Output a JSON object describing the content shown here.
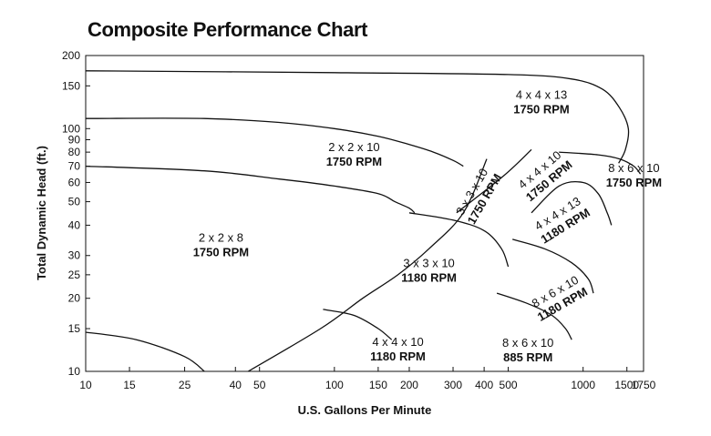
{
  "chart_data": {
    "type": "line",
    "title": "Composite Performance Chart",
    "xlabel": "U.S. Gallons Per Minute",
    "ylabel": "Total Dynamic Head (ft.)",
    "x_scale": "log",
    "y_scale": "log",
    "xlim": [
      10,
      1750
    ],
    "ylim": [
      10,
      200
    ],
    "grid": false,
    "x_ticks": [
      "10",
      "15",
      "25",
      "40",
      "50",
      "100",
      "150",
      "200",
      "300",
      "400",
      "500",
      "1000",
      "1500",
      "1750"
    ],
    "y_ticks": [
      "10",
      "15",
      "20",
      "25",
      "30",
      "40",
      "50",
      "60",
      "70",
      "80",
      "90",
      "100",
      "150",
      "200"
    ],
    "regions": [
      {
        "label": "2 x 2 x 8",
        "rpm": "1750 RPM",
        "boundary": [
          [
            10,
            70
          ],
          [
            30,
            67
          ],
          [
            60,
            62
          ],
          [
            100,
            58
          ],
          [
            150,
            54
          ],
          [
            175,
            50
          ],
          [
            200,
            47
          ],
          [
            210,
            45
          ]
        ],
        "label_at": [
          35,
          33
        ],
        "rotate": 0
      },
      {
        "label": "2 x 2 x 10",
        "rpm": "1750 RPM",
        "boundary": [
          [
            10,
            110
          ],
          [
            30,
            110
          ],
          [
            60,
            106
          ],
          [
            100,
            100
          ],
          [
            150,
            93
          ],
          [
            200,
            86
          ],
          [
            250,
            80
          ],
          [
            300,
            74
          ],
          [
            330,
            70
          ]
        ],
        "label_at": [
          120,
          78
        ],
        "rotate": 0
      },
      {
        "label": "4 x 4 x 13",
        "rpm": "1750 RPM",
        "boundary": [
          [
            10,
            173
          ],
          [
            100,
            170
          ],
          [
            500,
            167
          ],
          [
            900,
            160
          ],
          [
            1200,
            145
          ],
          [
            1400,
            122
          ],
          [
            1520,
            100
          ],
          [
            1480,
            82
          ],
          [
            1390,
            72
          ]
        ],
        "label_at": [
          680,
          128
        ],
        "rotate": 0
      },
      {
        "label": "3 x 3 x 10",
        "rpm": "1750 RPM",
        "boundary": [
          [
            45,
            10
          ],
          [
            88,
            15
          ],
          [
            130,
            20
          ],
          [
            180,
            25
          ],
          [
            240,
            32
          ],
          [
            330,
            45
          ],
          [
            410,
            75
          ]
        ],
        "label_at": [
          380,
          53
        ],
        "rotate": -60
      },
      {
        "label": "4 x 4 x 10",
        "rpm": "1750 RPM",
        "boundary": [
          [
            310,
            45
          ],
          [
            480,
            64
          ],
          [
            620,
            82
          ]
        ],
        "label_at": [
          700,
          64
        ],
        "rotate": -40
      },
      {
        "label": "4 x 4 x 13",
        "rpm": "1180 RPM",
        "boundary": [
          [
            620,
            45
          ],
          [
            800,
            58
          ],
          [
            1000,
            60
          ],
          [
            1150,
            54
          ],
          [
            1250,
            45
          ],
          [
            1300,
            40
          ]
        ],
        "label_at": [
          820,
          42
        ],
        "rotate": -32
      },
      {
        "label": "8 x 6 x 10",
        "rpm": "1750 RPM",
        "boundary": [
          [
            800,
            80
          ],
          [
            1150,
            78
          ],
          [
            1400,
            75
          ],
          [
            1600,
            70
          ],
          [
            1700,
            65
          ]
        ],
        "label_at": [
          1600,
          64
        ],
        "rotate": 0
      },
      {
        "label": "3 x 3 x 10",
        "rpm": "1180 RPM",
        "boundary": [
          [
            200,
            45
          ],
          [
            300,
            42
          ],
          [
            400,
            38
          ],
          [
            470,
            32
          ],
          [
            500,
            27
          ]
        ],
        "label_at": [
          240,
          26
        ],
        "rotate": 0
      },
      {
        "label": "4 x 4 x 10",
        "rpm": "1180 RPM",
        "boundary": [
          [
            90,
            18
          ],
          [
            120,
            17
          ],
          [
            150,
            15
          ],
          [
            170,
            13.5
          ]
        ],
        "label_at": [
          180,
          12.3
        ],
        "rotate": 0
      },
      {
        "label": "8 x 6 x 10",
        "rpm": "1180 RPM",
        "boundary": [
          [
            520,
            35
          ],
          [
            700,
            32
          ],
          [
            900,
            28
          ],
          [
            1050,
            24
          ],
          [
            1100,
            21
          ]
        ],
        "label_at": [
          800,
          20
        ],
        "rotate": -30
      },
      {
        "label": "8 x 6 x 10",
        "rpm": "885 RPM",
        "boundary": [
          [
            450,
            21
          ],
          [
            600,
            19
          ],
          [
            750,
            17
          ],
          [
            850,
            15
          ],
          [
            900,
            13.5
          ]
        ],
        "label_at": [
          600,
          12.2
        ],
        "rotate": 0
      },
      {
        "label": "",
        "rpm": "",
        "boundary": [
          [
            10,
            14.5
          ],
          [
            16,
            13.5
          ],
          [
            25,
            11.5
          ],
          [
            30,
            10
          ]
        ],
        "label_at": null,
        "rotate": 0
      }
    ]
  }
}
